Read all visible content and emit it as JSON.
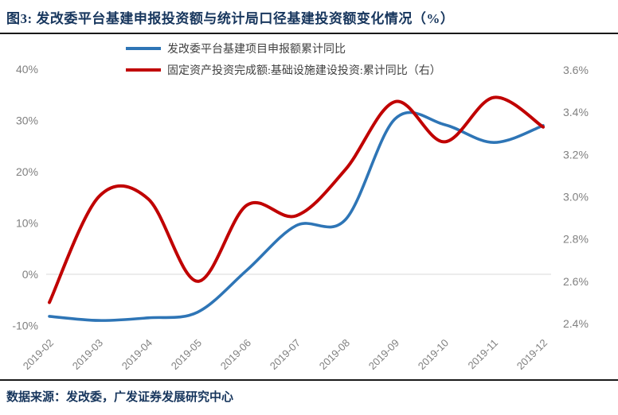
{
  "header": {
    "title": "图3:  发改委平台基建申报投资额与统计局口径基建投资额变化情况（%）"
  },
  "legend": {
    "items": [
      {
        "label": "发改委平台基建项目申报额累计同比",
        "color": "#2E75B6"
      },
      {
        "label": "固定资产投资完成额:基础设施建设投资:累计同比（右）",
        "color": "#C00000"
      }
    ]
  },
  "footer": {
    "source": "数据来源：发改委，广发证券发展研究中心"
  },
  "colors": {
    "blue_series": "#2E75B6",
    "red_series": "#C00000",
    "axis_text": "#808080",
    "title_text": "#17365D",
    "rule": "#1a1a1a",
    "gridline": "#D9D9D9"
  },
  "chart_data": {
    "type": "line",
    "categories": [
      "2019-02",
      "2019-03",
      "2019-04",
      "2019-05",
      "2019-06",
      "2019-07",
      "2019-08",
      "2019-09",
      "2019-10",
      "2019-11",
      "2019-12"
    ],
    "series": [
      {
        "name": "发改委平台基建项目申报额累计同比",
        "axis": "left",
        "color": "#2E75B6",
        "values": [
          -8.2,
          -9.0,
          -8.5,
          -7.4,
          0.8,
          9.5,
          10.7,
          30.3,
          29.2,
          25.7,
          29.0
        ]
      },
      {
        "name": "固定资产投资完成额:基础设施建设投资:累计同比（右）",
        "axis": "right",
        "color": "#C00000",
        "values": [
          2.5,
          3.0,
          2.99,
          2.6,
          2.96,
          2.91,
          3.13,
          3.45,
          3.26,
          3.47,
          3.33
        ]
      }
    ],
    "left_axis": {
      "min": -10,
      "max": 40,
      "tick_values": [
        40,
        30,
        20,
        10,
        0,
        -10
      ],
      "tick_labels": [
        "40%",
        "30%",
        "20%",
        "10%",
        "0%",
        "-10%"
      ]
    },
    "right_axis": {
      "min": 2.4,
      "max": 3.6,
      "tick_values": [
        3.6,
        3.4,
        3.2,
        3.0,
        2.8,
        2.6,
        2.4
      ],
      "tick_labels": [
        "3.6%",
        "3.4%",
        "3.2%",
        "3.0%",
        "2.8%",
        "2.6%",
        "2.4%"
      ]
    },
    "gridlines": [
      {
        "axis": "left",
        "value": 0
      }
    ],
    "legend_position": "top",
    "x_label_rotation": -45,
    "smooth": true
  }
}
